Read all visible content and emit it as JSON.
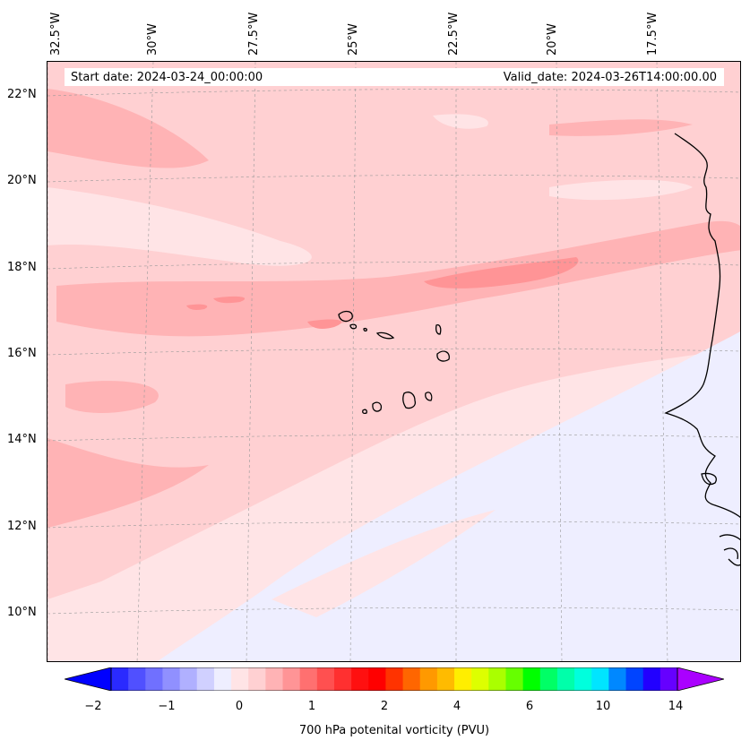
{
  "map": {
    "start_date": "Start date: 2024-03-24_00:00:00",
    "valid_date": "Valid_date: 2024-03-26T14:00:00.00",
    "lon_labels": [
      "32.5°W",
      "30°W",
      "27.5°W",
      "25°W",
      "22.5°W",
      "20°W",
      "17.5°W"
    ],
    "lat_labels": [
      "22°N",
      "20°N",
      "18°N",
      "16°N",
      "14°N",
      "12°N",
      "10°N"
    ],
    "colors": {
      "land_ocean_base": "#ffe4e6",
      "light_pink": "#ffd0d2",
      "medium_pink": "#ffb3b5",
      "strong_pink": "#ff9496",
      "pale_blue": "#eeeeff"
    }
  },
  "colorbar": {
    "title": "700 hPa potenital vorticity (PVU)",
    "tick_labels": [
      "−2",
      "−1",
      "0",
      "1",
      "2",
      "4",
      "6",
      "10",
      "14"
    ],
    "colors": [
      "#0000ff",
      "#2a2aff",
      "#5050ff",
      "#7070ff",
      "#9090ff",
      "#b0b0ff",
      "#d0d0ff",
      "#eeeeff",
      "#ffe4e6",
      "#ffd0d2",
      "#ffb3b5",
      "#ff9496",
      "#ff7070",
      "#ff5050",
      "#ff3030",
      "#ff1010",
      "#ff0000",
      "#ff3300",
      "#ff6600",
      "#ff9900",
      "#ffbb00",
      "#ffee00",
      "#ddff00",
      "#aaff00",
      "#66ff00",
      "#00ff00",
      "#00ff66",
      "#00ffaa",
      "#00ffdd",
      "#00e5ff",
      "#0088ff",
      "#0044ff",
      "#2200ff",
      "#6600ff",
      "#aa00ff"
    ]
  }
}
